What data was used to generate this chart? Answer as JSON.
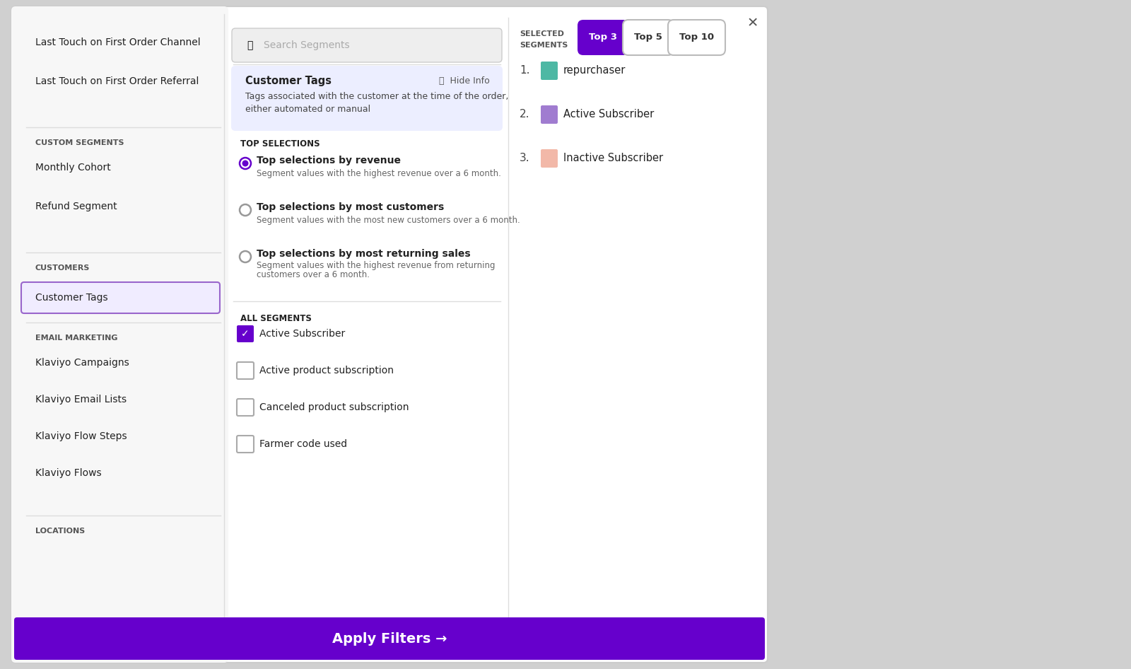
{
  "bg_color": "#d0d0d0",
  "modal_bg": "#ffffff",
  "left_panel_bg": "#f7f7f7",
  "left_items": [
    "Last Touch on First Order Channel",
    "Last Touch on First Order Referral"
  ],
  "custom_segments_label": "CUSTOM SEGMENTS",
  "custom_items": [
    "Monthly Cohort",
    "Refund Segment"
  ],
  "customers_label": "CUSTOMERS",
  "customer_tags_label": "Customer Tags",
  "email_marketing_label": "EMAIL MARKETING",
  "email_items": [
    "Klaviyo Campaigns",
    "Klaviyo Email Lists",
    "Klaviyo Flow Steps",
    "Klaviyo Flows"
  ],
  "locations_label": "LOCATIONS",
  "search_placeholder": "Search Segments",
  "search_bg": "#eeeeee",
  "info_box_bg": "#eceeff",
  "info_box_title": "Customer Tags",
  "info_box_text1": "Tags associated with the customer at the time of the order,",
  "info_box_text2": "either automated or manual",
  "hide_info_text": "Hide Info",
  "top_selections_label": "TOP SELECTIONS",
  "radio_options": [
    {
      "title": "Top selections by revenue",
      "desc": "Segment values with the highest revenue over a 6 month.",
      "selected": true
    },
    {
      "title": "Top selections by most customers",
      "desc": "Segment values with the most new customers over a 6 month.",
      "selected": false
    },
    {
      "title": "Top selections by most returning sales",
      "desc1": "Segment values with the highest revenue from returning",
      "desc2": "customers over a 6 month.",
      "selected": false
    }
  ],
  "all_segments_label": "ALL SEGMENTS",
  "checkboxes": [
    {
      "label": "Active Subscriber",
      "checked": true
    },
    {
      "label": "Active product subscription",
      "checked": false
    },
    {
      "label": "Canceled product subscription",
      "checked": false
    },
    {
      "label": "Farmer code used",
      "checked": false
    }
  ],
  "selected_segments_label_line1": "SELECTED",
  "selected_segments_label_line2": "SEGMENTS",
  "top_buttons": [
    {
      "label": "Top 3",
      "selected": true
    },
    {
      "label": "Top 5",
      "selected": false
    },
    {
      "label": "Top 10",
      "selected": false
    }
  ],
  "top_button_selected_bg": "#6600cc",
  "top_button_selected_fg": "#ffffff",
  "segments": [
    {
      "num": "1.",
      "color": "#4db8a4",
      "label": "repurchaser"
    },
    {
      "num": "2.",
      "color": "#a07cd0",
      "label": "Active Subscriber"
    },
    {
      "num": "3.",
      "color": "#f2b8a8",
      "label": "Inactive Subscriber"
    }
  ],
  "apply_button_bg": "#6600cc",
  "apply_button_text": "Apply Filters →",
  "apply_button_fg": "#ffffff",
  "close_button": "✕",
  "purple_color": "#6600cc",
  "light_purple_bg": "#f0ecff",
  "customer_tags_border": "#9966cc",
  "separator_color": "#dddddd",
  "label_color": "#555555",
  "text_color": "#222222",
  "desc_color": "#666666"
}
